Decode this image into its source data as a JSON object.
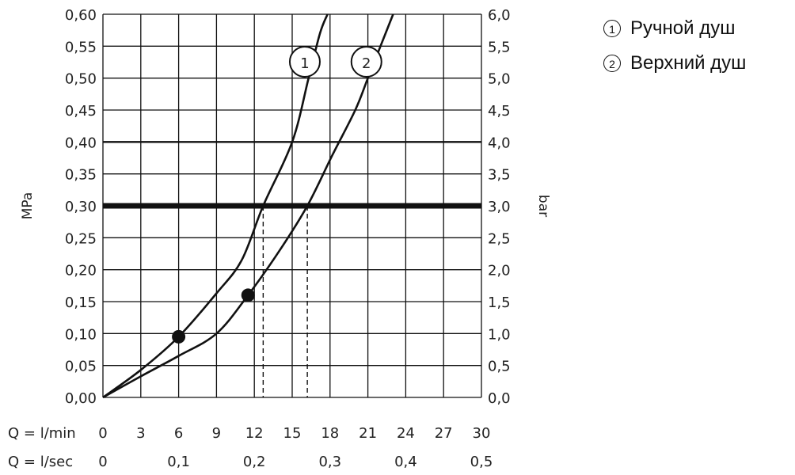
{
  "chart_data": {
    "type": "line",
    "title": "",
    "ylabel_left": "MPa",
    "ylabel_right": "bar",
    "ylim_mpa": [
      0,
      0.6
    ],
    "xlim_lmin": [
      0,
      30
    ],
    "grid": true,
    "left_ticks": [
      "0,00",
      "0,05",
      "0,10",
      "0,15",
      "0,20",
      "0,25",
      "0,30",
      "0,35",
      "0,40",
      "0,45",
      "0,50",
      "0,55",
      "0,60"
    ],
    "right_ticks": [
      "0,0",
      "0,5",
      "1,0",
      "1,5",
      "2,0",
      "2,5",
      "3,0",
      "3,5",
      "4,0",
      "4,5",
      "5,0",
      "5,5",
      "6,0"
    ],
    "x_row1": {
      "label": "Q = l/min",
      "ticks": [
        {
          "value": 0,
          "label": "0"
        },
        {
          "value": 3,
          "label": "3"
        },
        {
          "value": 6,
          "label": "6"
        },
        {
          "value": 9,
          "label": "9"
        },
        {
          "value": 12,
          "label": "12"
        },
        {
          "value": 15,
          "label": "15"
        },
        {
          "value": 18,
          "label": "18"
        },
        {
          "value": 21,
          "label": "21"
        },
        {
          "value": 24,
          "label": "24"
        },
        {
          "value": 27,
          "label": "27"
        },
        {
          "value": 30,
          "label": "30"
        }
      ]
    },
    "x_row2": {
      "label": "Q = l/sec",
      "ticks": [
        {
          "value": 0,
          "label": "0"
        },
        {
          "value": 6,
          "label": "0,1"
        },
        {
          "value": 12,
          "label": "0,2"
        },
        {
          "value": 18,
          "label": "0,3"
        },
        {
          "value": 24,
          "label": "0,4"
        },
        {
          "value": 30,
          "label": "0,5"
        }
      ]
    },
    "reference_line": {
      "y": 0.3
    },
    "series": [
      {
        "name": "1",
        "points": [
          [
            0,
            0
          ],
          [
            3,
            0.043
          ],
          [
            6,
            0.095
          ],
          [
            9,
            0.163
          ],
          [
            11,
            0.215
          ],
          [
            12.7,
            0.3
          ],
          [
            15,
            0.4
          ],
          [
            16.3,
            0.5
          ],
          [
            17.2,
            0.57
          ],
          [
            17.8,
            0.6
          ]
        ],
        "marker": [
          6,
          0.095
        ],
        "crossing_x": 12.7
      },
      {
        "name": "2",
        "points": [
          [
            0,
            0
          ],
          [
            3,
            0.033
          ],
          [
            6,
            0.065
          ],
          [
            9,
            0.1
          ],
          [
            11.5,
            0.16
          ],
          [
            14,
            0.23
          ],
          [
            16.2,
            0.3
          ],
          [
            18.2,
            0.38
          ],
          [
            20,
            0.45
          ],
          [
            21,
            0.5
          ],
          [
            22,
            0.55
          ],
          [
            23,
            0.6
          ]
        ],
        "marker": [
          11.5,
          0.16
        ],
        "crossing_x": 16.2
      }
    ]
  },
  "legend": [
    {
      "num": "1",
      "label": "Ручной душ"
    },
    {
      "num": "2",
      "label": "Верхний душ"
    }
  ]
}
